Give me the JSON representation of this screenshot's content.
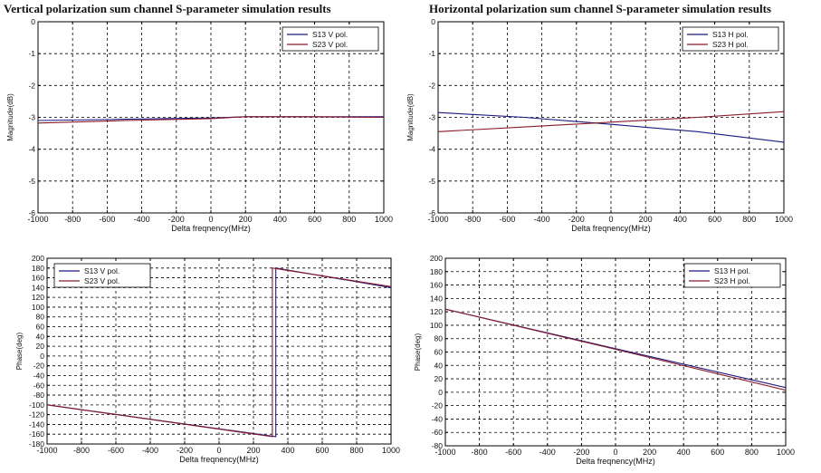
{
  "titles": {
    "left": "Vertical polarization sum channel S-parameter simulation results",
    "right": "Horizontal polarization sum channel S-parameter simulation results"
  },
  "colors": {
    "s13": "#1a1a80",
    "s23": "#8b1a2a",
    "axis": "#000000",
    "grid": "#000000"
  },
  "chart_data": [
    {
      "id": "v-mag",
      "type": "line",
      "xlabel": "Delta freqnency(MHz)",
      "ylabel": "Magnitude(dB)",
      "xlim": [
        -1000,
        1000
      ],
      "ylim": [
        -6,
        0
      ],
      "xticks": [
        -1000,
        -800,
        -600,
        -400,
        -200,
        0,
        200,
        400,
        600,
        800,
        1000
      ],
      "yticks": [
        -6,
        -5,
        -4,
        -3,
        -2,
        -1,
        0
      ],
      "grid": true,
      "legend": "top-right",
      "series": [
        {
          "name": "S13 V pol.",
          "color_key": "s13",
          "x": [
            -1000,
            -500,
            0,
            200,
            500,
            1000
          ],
          "y": [
            -3.1,
            -3.06,
            -3.02,
            -2.98,
            -2.98,
            -2.98
          ]
        },
        {
          "name": "S23 V pol.",
          "color_key": "s23",
          "x": [
            -1000,
            -500,
            0,
            200,
            500,
            1000
          ],
          "y": [
            -3.18,
            -3.1,
            -3.04,
            -2.98,
            -2.98,
            -3.0
          ]
        }
      ]
    },
    {
      "id": "h-mag",
      "type": "line",
      "xlabel": "Delta freqnency(MHz)",
      "ylabel": "Magnitude(dB)",
      "xlim": [
        -1000,
        1000
      ],
      "ylim": [
        -6,
        0
      ],
      "xticks": [
        -1000,
        -800,
        -600,
        -400,
        -200,
        0,
        200,
        400,
        600,
        800,
        1000
      ],
      "yticks": [
        -6,
        -5,
        -4,
        -3,
        -2,
        -1,
        0
      ],
      "grid": true,
      "legend": "top-right",
      "series": [
        {
          "name": "S13 H pol.",
          "color_key": "s13",
          "x": [
            -1000,
            -500,
            0,
            500,
            1000
          ],
          "y": [
            -2.85,
            -3.0,
            -3.22,
            -3.45,
            -3.78
          ]
        },
        {
          "name": "S23 H pol.",
          "color_key": "s23",
          "x": [
            -1000,
            -500,
            0,
            500,
            1000
          ],
          "y": [
            -3.45,
            -3.3,
            -3.15,
            -3.0,
            -2.82
          ]
        }
      ]
    },
    {
      "id": "v-phase",
      "type": "line",
      "xlabel": "Delta freqnency(MHz)",
      "ylabel": "Phase(deg)",
      "xlim": [
        -1000,
        1000
      ],
      "ylim": [
        -180,
        200
      ],
      "xticks": [
        -1000,
        -800,
        -600,
        -400,
        -200,
        0,
        200,
        400,
        600,
        800,
        1000
      ],
      "yticks": [
        -180,
        -160,
        -140,
        -120,
        -100,
        -80,
        -60,
        -40,
        -20,
        0,
        20,
        40,
        60,
        80,
        100,
        120,
        140,
        160,
        180,
        200
      ],
      "grid": true,
      "legend": "top-left",
      "series": [
        {
          "name": "S13 V pol.",
          "color_key": "s13",
          "x": [
            -1000,
            330,
            330,
            1000
          ],
          "y": [
            -100,
            -165,
            180,
            140
          ]
        },
        {
          "name": "S23 V pol.",
          "color_key": "s23",
          "x": [
            -1000,
            310,
            310,
            1000
          ],
          "y": [
            -100,
            -165,
            180,
            142
          ]
        }
      ]
    },
    {
      "id": "h-phase",
      "type": "line",
      "xlabel": "Delta freqnency(MHz)",
      "ylabel": "Phase(deg)",
      "xlim": [
        -1000,
        1000
      ],
      "ylim": [
        -80,
        200
      ],
      "xticks": [
        -1000,
        -800,
        -600,
        -400,
        -200,
        0,
        200,
        400,
        600,
        800,
        1000
      ],
      "yticks": [
        -80,
        -60,
        -40,
        -20,
        0,
        20,
        40,
        60,
        80,
        100,
        120,
        140,
        160,
        180,
        200
      ],
      "grid": true,
      "legend": "top-right",
      "series": [
        {
          "name": "S13 H pol.",
          "color_key": "s13",
          "x": [
            -1000,
            0,
            1000
          ],
          "y": [
            124,
            65,
            7
          ]
        },
        {
          "name": "S23 H pol.",
          "color_key": "s23",
          "x": [
            -1000,
            0,
            1000
          ],
          "y": [
            124,
            64,
            3
          ]
        }
      ]
    }
  ]
}
